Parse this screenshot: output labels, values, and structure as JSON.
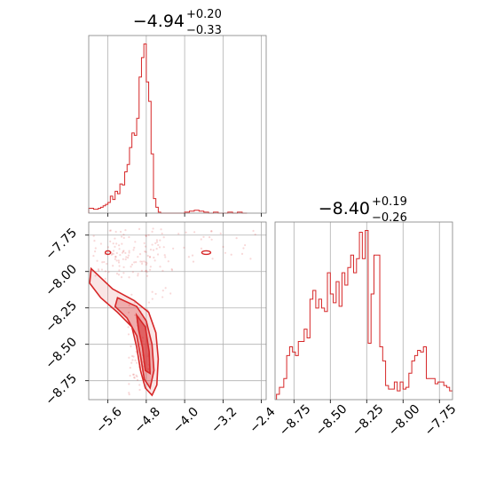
{
  "colors": {
    "series": "#d62728",
    "grid": "#b0b0b0",
    "axis": "#000000"
  },
  "chart_data": [
    {
      "type": "histogram",
      "panel": "top-left",
      "title": "−4.94",
      "title_sup": "+0.20",
      "title_sub": "−0.33",
      "xlim": [
        -6.0,
        -2.3
      ],
      "grid": true,
      "x_edges": [
        -6.0,
        -5.9,
        -5.8,
        -5.75,
        -5.7,
        -5.65,
        -5.6,
        -5.55,
        -5.5,
        -5.45,
        -5.4,
        -5.35,
        -5.3,
        -5.25,
        -5.2,
        -5.15,
        -5.1,
        -5.05,
        -5.0,
        -4.95,
        -4.9,
        -4.85,
        -4.8,
        -4.75,
        -4.7,
        -4.65,
        -4.6,
        -4.55,
        -4.5,
        -4.2,
        -4.0,
        -3.9,
        -3.8,
        -3.7,
        -3.6,
        -3.5,
        -3.4,
        -3.3,
        -3.1,
        -3.0,
        -2.9,
        -2.8,
        -2.7
      ],
      "counts": [
        10,
        8,
        10,
        12,
        15,
        18,
        22,
        35,
        28,
        45,
        40,
        60,
        58,
        85,
        100,
        135,
        165,
        160,
        195,
        280,
        320,
        348,
        270,
        230,
        122,
        30,
        12,
        2,
        0,
        0,
        2,
        4,
        6,
        4,
        2,
        0,
        2,
        0,
        2,
        0,
        2,
        0
      ]
    },
    {
      "type": "scatter_contour",
      "panel": "bottom-left",
      "xlim": [
        -6.0,
        -2.3
      ],
      "ylim": [
        -8.88,
        -7.66
      ],
      "x_ticks": [
        "−5.6",
        "−4.8",
        "−4.0",
        "−3.2",
        "−2.4"
      ],
      "x_tick_values": [
        -5.6,
        -4.8,
        -4.0,
        -3.2,
        -2.4
      ],
      "y_ticks": [
        "−7.75",
        "−8.00",
        "−8.25",
        "−8.50",
        "−8.75"
      ],
      "y_tick_values": [
        -7.75,
        -8.0,
        -8.25,
        -8.5,
        -8.75
      ],
      "grid": true
    },
    {
      "type": "histogram",
      "panel": "bottom-right",
      "title": "−8.40",
      "title_sup": "+0.19",
      "title_sub": "−0.26",
      "xlim": [
        -8.88,
        -7.66
      ],
      "x_ticks": [
        "−8.75",
        "−8.50",
        "−8.25",
        "−8.00",
        "−7.75"
      ],
      "x_tick_values": [
        -8.75,
        -8.5,
        -8.25,
        -8.0,
        -7.75
      ],
      "grid": true,
      "x_edges": [
        -8.87,
        -8.85,
        -8.82,
        -8.8,
        -8.78,
        -8.76,
        -8.74,
        -8.72,
        -8.7,
        -8.68,
        -8.66,
        -8.64,
        -8.62,
        -8.6,
        -8.58,
        -8.56,
        -8.54,
        -8.52,
        -8.5,
        -8.48,
        -8.46,
        -8.44,
        -8.42,
        -8.4,
        -8.38,
        -8.36,
        -8.34,
        -8.32,
        -8.3,
        -8.28,
        -8.26,
        -8.24,
        -8.22,
        -8.2,
        -8.18,
        -8.16,
        -8.14,
        -8.12,
        -8.1,
        -8.08,
        -8.06,
        -8.04,
        -8.02,
        -8.0,
        -7.98,
        -7.96,
        -7.94,
        -7.92,
        -7.9,
        -7.88,
        -7.86,
        -7.84,
        -7.82,
        -7.8,
        -7.78,
        -7.76,
        -7.74,
        -7.72,
        -7.7,
        -7.68,
        -7.66
      ],
      "counts": [
        3,
        7,
        12,
        25,
        30,
        27,
        25,
        33,
        33,
        40,
        35,
        57,
        62,
        52,
        57,
        52,
        50,
        72,
        60,
        55,
        67,
        53,
        72,
        65,
        75,
        82,
        72,
        80,
        95,
        80,
        96,
        32,
        60,
        82,
        82,
        30,
        22,
        8,
        6,
        6,
        10,
        5,
        10,
        6,
        7,
        15,
        22,
        25,
        28,
        27,
        30,
        12,
        12,
        12,
        9,
        10,
        10,
        8,
        7,
        5
      ],
      "max_count": 96
    }
  ]
}
